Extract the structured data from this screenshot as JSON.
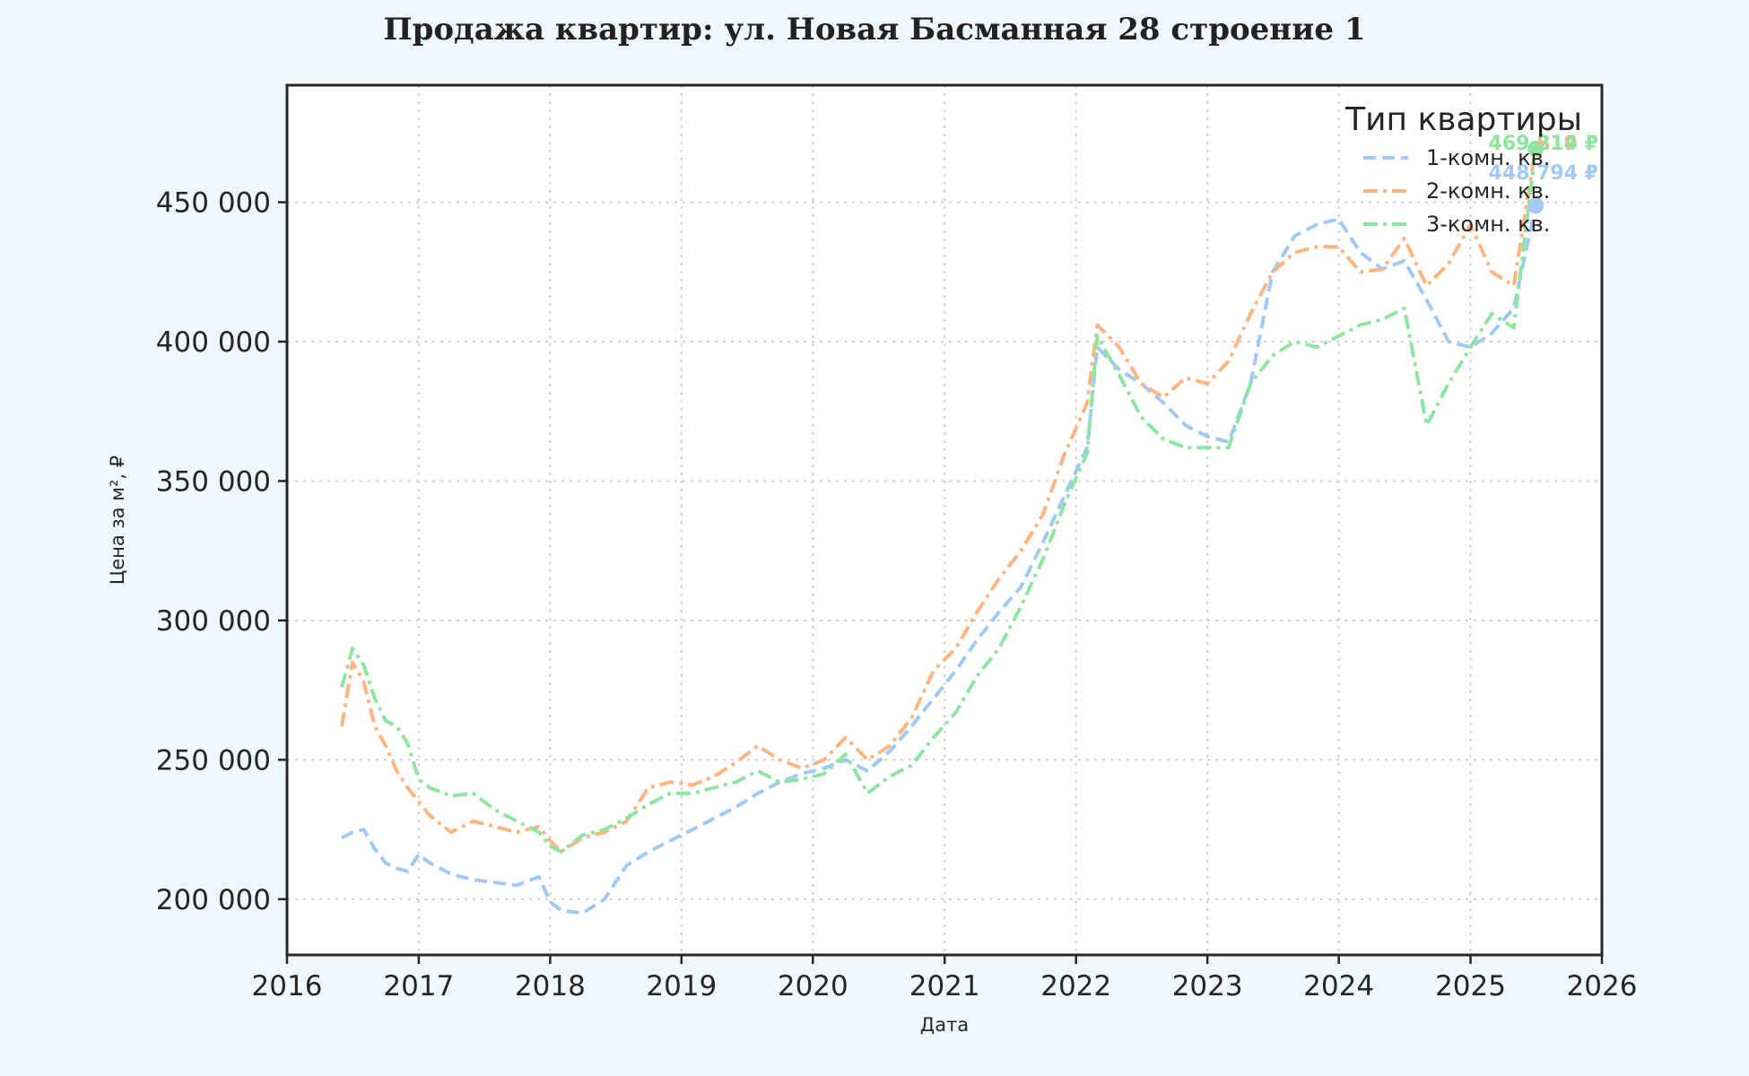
{
  "chart_data": {
    "type": "line",
    "title": "Продажа квартир: ул. Новая Басманная 28 строение 1",
    "xlabel": "Дата",
    "ylabel": "Цена за м², ₽",
    "xlim": [
      "2016-01-01",
      "2026-01-01"
    ],
    "ylim": [
      180000,
      492000
    ],
    "x_ticks": [
      "2016",
      "2017",
      "2018",
      "2019",
      "2020",
      "2021",
      "2022",
      "2023",
      "2024",
      "2025",
      "2026"
    ],
    "y_ticks": [
      {
        "value": 200000,
        "label": "200 000"
      },
      {
        "value": 250000,
        "label": "250 000"
      },
      {
        "value": 300000,
        "label": "300 000"
      },
      {
        "value": 350000,
        "label": "350 000"
      },
      {
        "value": 400000,
        "label": "400 000"
      },
      {
        "value": 450000,
        "label": "450 000"
      }
    ],
    "grid": true,
    "legend": {
      "title": "Тип квартиры",
      "placement": "top-right"
    },
    "series": [
      {
        "name": "1-комн. кв.",
        "color": "#a1c9f4",
        "dash": "dashed",
        "x": [
          "2016-06-01",
          "2016-07-01",
          "2016-08-01",
          "2016-09-01",
          "2016-10-01",
          "2016-11-01",
          "2016-12-01",
          "2017-01-01",
          "2017-02-01",
          "2017-04-01",
          "2017-06-01",
          "2017-08-01",
          "2017-10-01",
          "2017-12-01",
          "2018-01-01",
          "2018-02-01",
          "2018-04-01",
          "2018-06-01",
          "2018-08-01",
          "2018-10-01",
          "2018-12-01",
          "2019-02-01",
          "2019-04-01",
          "2019-06-01",
          "2019-08-01",
          "2019-10-01",
          "2019-12-01",
          "2020-02-01",
          "2020-04-01",
          "2020-06-01",
          "2020-08-01",
          "2020-10-01",
          "2020-12-01",
          "2021-02-01",
          "2021-04-01",
          "2021-06-01",
          "2021-08-01",
          "2021-10-01",
          "2021-12-01",
          "2022-02-01",
          "2022-03-01",
          "2022-05-01",
          "2022-07-01",
          "2022-09-01",
          "2022-11-01",
          "2023-01-01",
          "2023-03-01",
          "2023-05-01",
          "2023-07-01",
          "2023-09-01",
          "2023-11-01",
          "2024-01-01",
          "2024-03-01",
          "2024-05-01",
          "2024-07-01",
          "2024-09-01",
          "2024-11-01",
          "2025-01-01",
          "2025-03-01",
          "2025-05-01",
          "2025-07-01"
        ],
        "values": [
          222000,
          224000,
          225000,
          218000,
          213000,
          211000,
          210000,
          216000,
          213000,
          209000,
          207000,
          206000,
          205000,
          208000,
          199000,
          196000,
          195000,
          200000,
          212000,
          217000,
          221000,
          225000,
          229000,
          233000,
          238000,
          242000,
          245000,
          247000,
          250000,
          246000,
          253000,
          262000,
          272000,
          282000,
          293000,
          303000,
          312000,
          328000,
          345000,
          362000,
          398000,
          390000,
          385000,
          378000,
          370000,
          366000,
          364000,
          385000,
          425000,
          438000,
          442000,
          444000,
          432000,
          426000,
          429000,
          415000,
          400000,
          398000,
          403000,
          412000,
          448794
        ]
      },
      {
        "name": "2-комн. кв.",
        "color": "#ffb482",
        "dash": "dashdot",
        "x": [
          "2016-06-01",
          "2016-07-01",
          "2016-08-01",
          "2016-09-01",
          "2016-10-01",
          "2016-11-01",
          "2016-12-01",
          "2017-01-01",
          "2017-02-01",
          "2017-04-01",
          "2017-06-01",
          "2017-08-01",
          "2017-10-01",
          "2017-12-01",
          "2018-01-01",
          "2018-02-01",
          "2018-04-01",
          "2018-06-01",
          "2018-08-01",
          "2018-10-01",
          "2018-12-01",
          "2019-02-01",
          "2019-04-01",
          "2019-06-01",
          "2019-08-01",
          "2019-10-01",
          "2019-12-01",
          "2020-02-01",
          "2020-04-01",
          "2020-06-01",
          "2020-08-01",
          "2020-10-01",
          "2020-12-01",
          "2021-02-01",
          "2021-04-01",
          "2021-06-01",
          "2021-08-01",
          "2021-10-01",
          "2021-12-01",
          "2022-02-01",
          "2022-03-01",
          "2022-05-01",
          "2022-07-01",
          "2022-09-01",
          "2022-11-01",
          "2023-01-01",
          "2023-03-01",
          "2023-05-01",
          "2023-07-01",
          "2023-09-01",
          "2023-11-01",
          "2024-01-01",
          "2024-03-01",
          "2024-05-01",
          "2024-07-01",
          "2024-09-01",
          "2024-11-01",
          "2025-01-01",
          "2025-03-01",
          "2025-05-01",
          "2025-07-01"
        ],
        "values": [
          262000,
          285000,
          278000,
          262000,
          255000,
          246000,
          240000,
          235000,
          230000,
          224000,
          228000,
          226000,
          224000,
          226000,
          221000,
          217000,
          222000,
          224000,
          228000,
          240000,
          242000,
          241000,
          244000,
          249000,
          255000,
          250000,
          247000,
          250000,
          258000,
          250000,
          255000,
          265000,
          282000,
          290000,
          303000,
          315000,
          325000,
          338000,
          360000,
          378000,
          406000,
          398000,
          385000,
          380000,
          387000,
          385000,
          393000,
          410000,
          425000,
          432000,
          434000,
          434000,
          425000,
          426000,
          437000,
          420000,
          428000,
          442000,
          425000,
          420000,
          469819
        ]
      },
      {
        "name": "3-комн. кв.",
        "color": "#8de5a1",
        "dash": "dashdot",
        "x": [
          "2016-06-01",
          "2016-07-01",
          "2016-08-01",
          "2016-09-01",
          "2016-10-01",
          "2016-11-01",
          "2016-12-01",
          "2017-01-01",
          "2017-02-01",
          "2017-04-01",
          "2017-06-01",
          "2017-08-01",
          "2017-10-01",
          "2017-12-01",
          "2018-01-01",
          "2018-02-01",
          "2018-04-01",
          "2018-06-01",
          "2018-08-01",
          "2018-10-01",
          "2018-12-01",
          "2019-02-01",
          "2019-04-01",
          "2019-06-01",
          "2019-08-01",
          "2019-10-01",
          "2019-12-01",
          "2020-02-01",
          "2020-04-01",
          "2020-06-01",
          "2020-08-01",
          "2020-10-01",
          "2020-12-01",
          "2021-02-01",
          "2021-04-01",
          "2021-06-01",
          "2021-08-01",
          "2021-10-01",
          "2021-12-01",
          "2022-02-01",
          "2022-03-01",
          "2022-05-01",
          "2022-07-01",
          "2022-09-01",
          "2022-11-01",
          "2023-01-01",
          "2023-03-01",
          "2023-05-01",
          "2023-07-01",
          "2023-09-01",
          "2023-11-01",
          "2024-01-01",
          "2024-03-01",
          "2024-05-01",
          "2024-07-01",
          "2024-09-01",
          "2024-11-01",
          "2025-01-01",
          "2025-03-01",
          "2025-05-01",
          "2025-07-01"
        ],
        "values": [
          276000,
          290000,
          284000,
          272000,
          264000,
          262000,
          256000,
          243000,
          240000,
          237000,
          238000,
          232000,
          228000,
          224000,
          219000,
          217000,
          223000,
          225000,
          229000,
          234000,
          238000,
          238000,
          240000,
          242000,
          246000,
          242000,
          243000,
          245000,
          252000,
          238000,
          244000,
          248000,
          258000,
          267000,
          280000,
          290000,
          305000,
          322000,
          342000,
          360000,
          402000,
          388000,
          373000,
          365000,
          362000,
          362000,
          362000,
          385000,
          395000,
          400000,
          398000,
          402000,
          406000,
          408000,
          412000,
          370000,
          385000,
          398000,
          410000,
          405000,
          469214
        ]
      }
    ],
    "end_labels": [
      {
        "series": "2-комн. кв.",
        "text": "469 819 ₽"
      },
      {
        "series": "3-комн. кв.",
        "text": "469 214 ₽"
      },
      {
        "series": "1-комн. кв.",
        "text": "448 794 ₽"
      }
    ]
  }
}
